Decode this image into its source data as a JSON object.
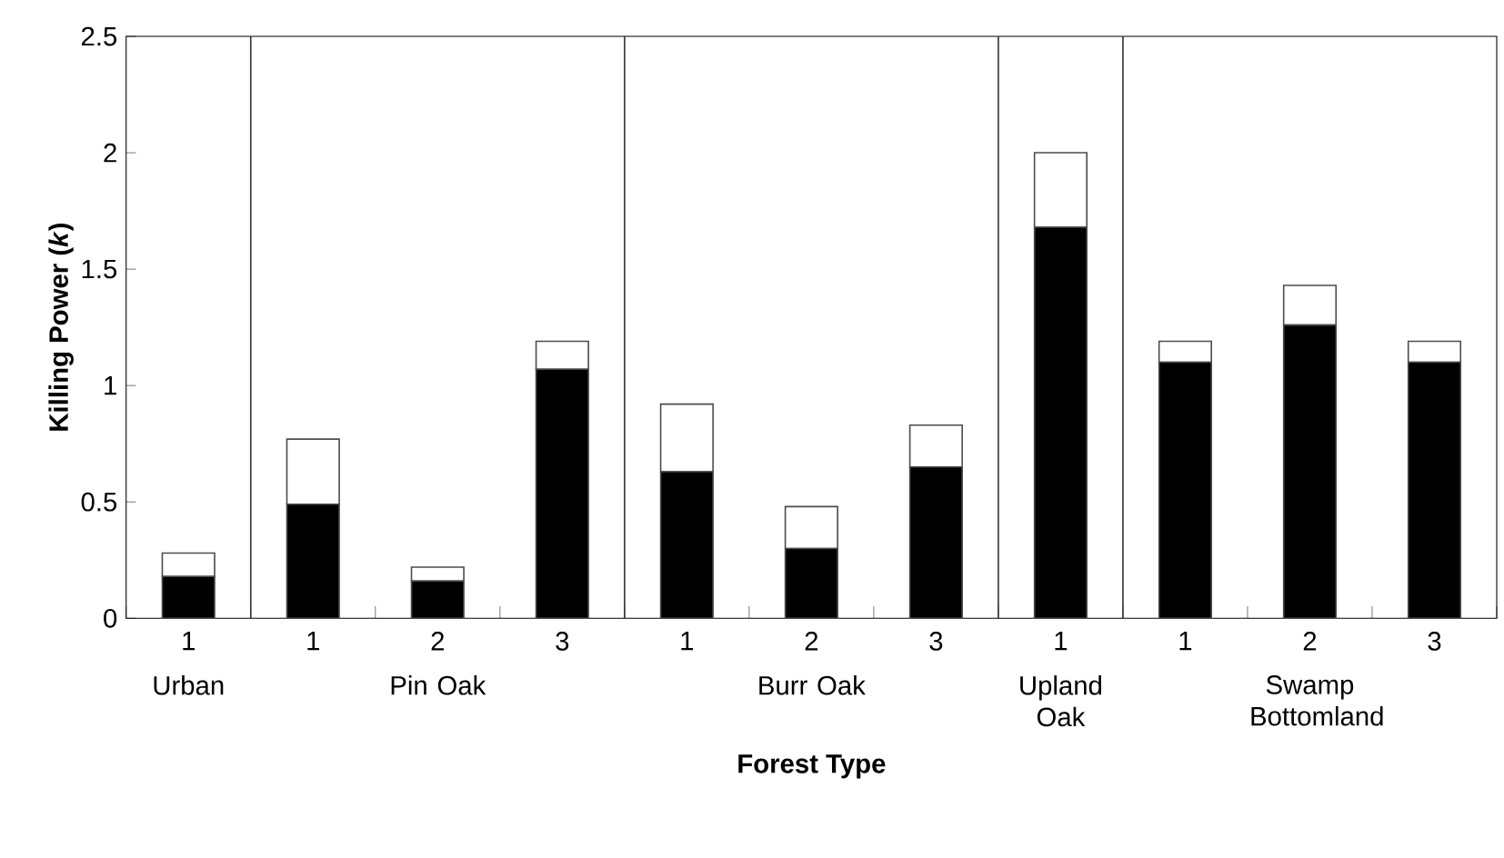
{
  "chart_data": {
    "type": "bar",
    "stacked": true,
    "xlabel": "Forest Type",
    "ylabel": "**Killing Power (*k*)**",
    "categories": [
      "1",
      "1",
      "2",
      "3",
      "1",
      "2",
      "3",
      "1",
      "1",
      "2",
      "3"
    ],
    "series": [
      {
        "color": "#000000",
        "values": [
          0.18,
          0.49,
          0.16,
          1.07,
          0.63,
          0.3,
          0.65,
          1.68,
          1.1,
          1.26,
          1.1
        ]
      },
      {
        "color": "#ffffff",
        "values": [
          0.1,
          0.28,
          0.06,
          0.12,
          0.29,
          0.18,
          0.18,
          0.32,
          0.09,
          0.17,
          0.09
        ]
      }
    ],
    "ylim": [
      0,
      2.5
    ],
    "yticks": [
      0,
      0.5,
      1,
      1.5,
      2,
      2.5
    ],
    "annotations": [
      "Urban",
      "Pin Oak",
      "Burr Oak",
      "Upland Oak",
      "Swamp Bottomland"
    ]
  }
}
